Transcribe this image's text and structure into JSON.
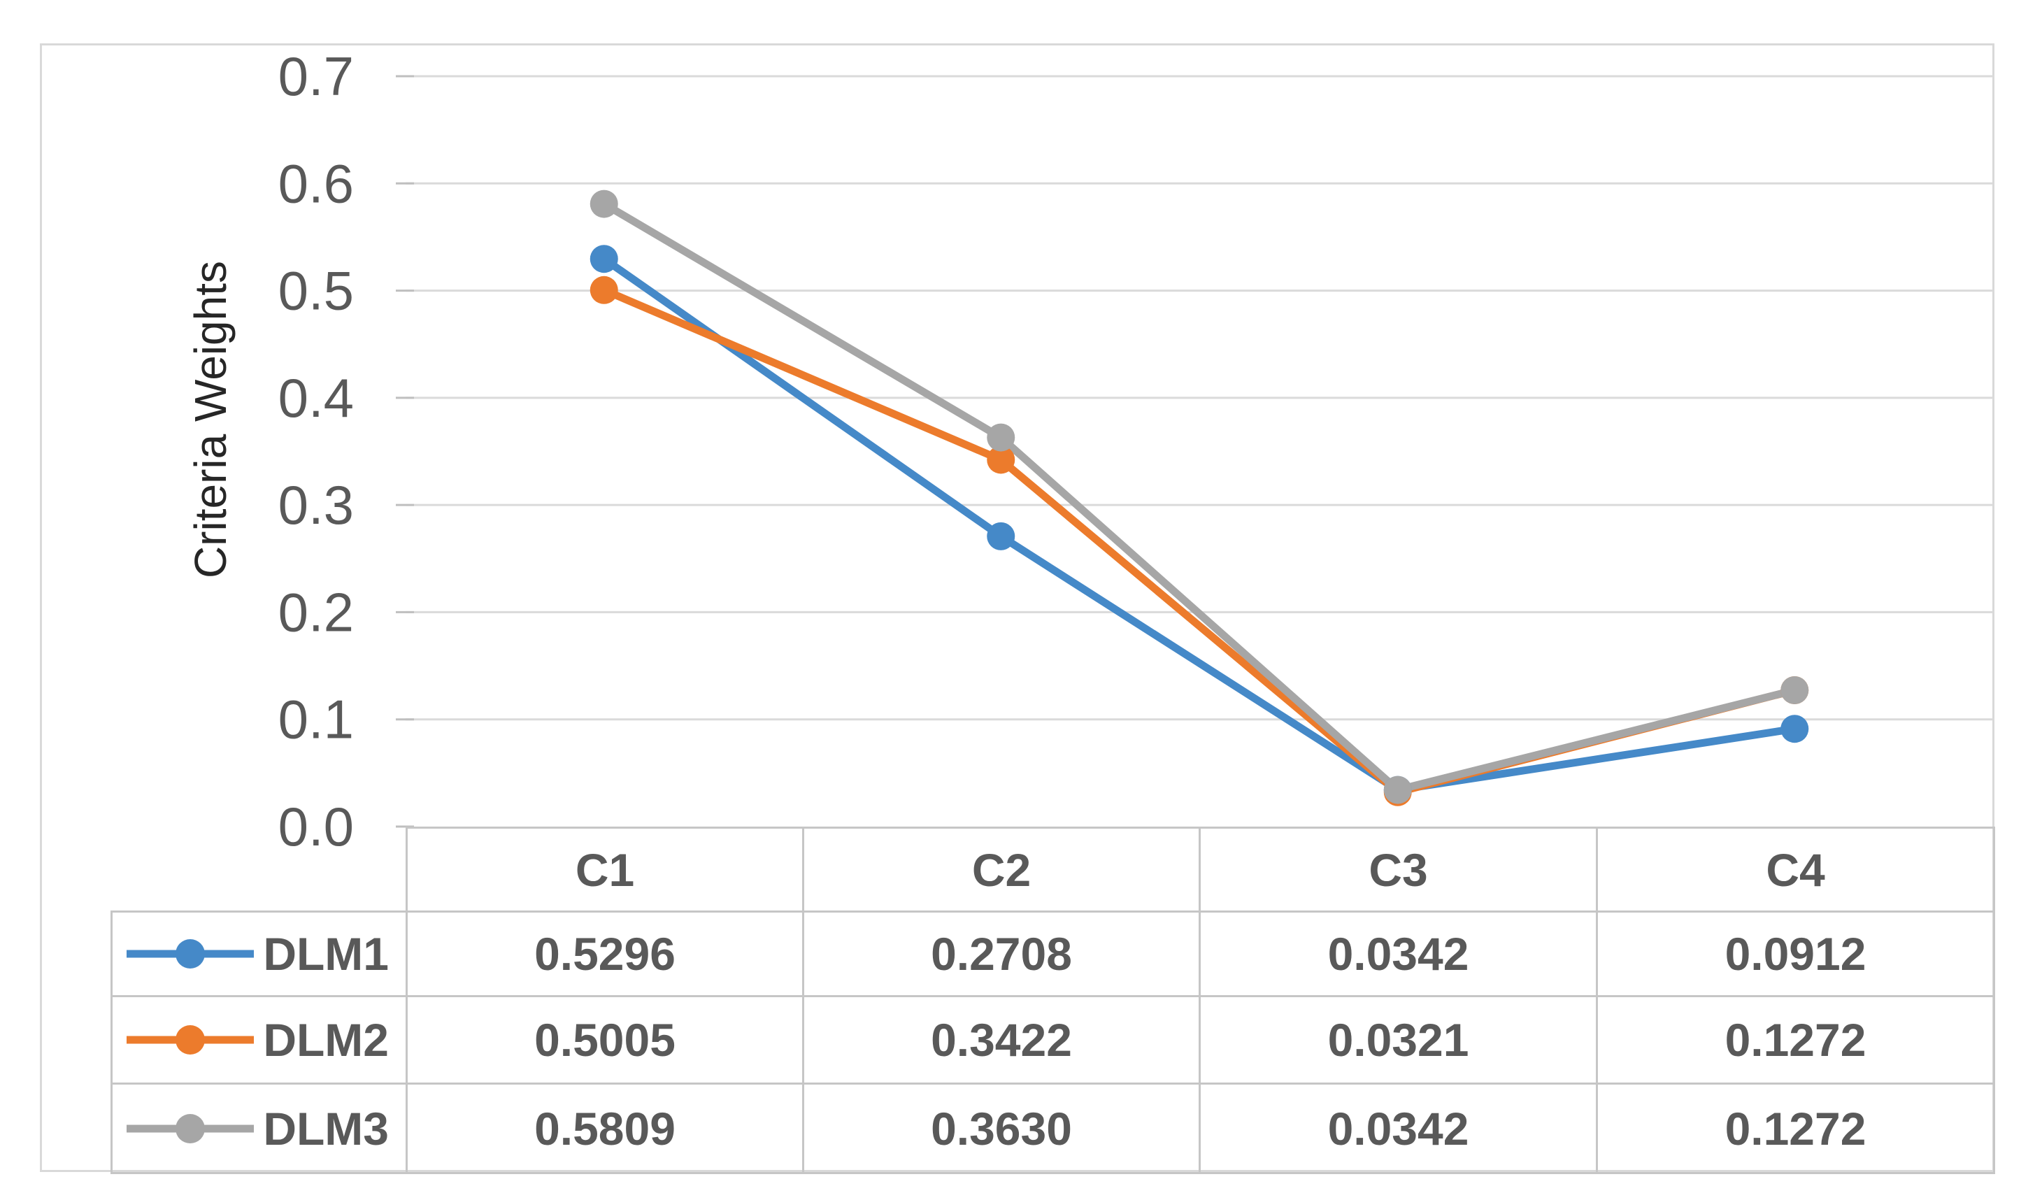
{
  "figure": {
    "kind": "spreadsheet-line-chart-with-data-table"
  },
  "chart_data": {
    "type": "line",
    "title": "",
    "xlabel": "",
    "ylabel": "Criteria Weights",
    "categories": [
      "C1",
      "C2",
      "C3",
      "C4"
    ],
    "series": [
      {
        "name": "DLM1",
        "color": "#4589C8",
        "values": [
          0.5296,
          0.2708,
          0.0342,
          0.0912
        ],
        "values_display": [
          "0.5296",
          "0.2708",
          "0.0342",
          "0.0912"
        ]
      },
      {
        "name": "DLM2",
        "color": "#EC7B2C",
        "values": [
          0.5005,
          0.3422,
          0.0321,
          0.1272
        ],
        "values_display": [
          "0.5005",
          "0.3422",
          "0.0321",
          "0.1272"
        ]
      },
      {
        "name": "DLM3",
        "color": "#A6A6A6",
        "values": [
          0.5809,
          0.363,
          0.0342,
          0.1272
        ],
        "values_display": [
          "0.5809",
          "0.3630",
          "0.0342",
          "0.1272"
        ]
      }
    ],
    "y_axis": {
      "min": 0.0,
      "max": 0.7,
      "step": 0.1,
      "tick_labels": [
        "0.7",
        "0.6",
        "0.5",
        "0.4",
        "0.3",
        "0.2",
        "0.1",
        "0.0"
      ]
    },
    "grid": true,
    "grid_color": "#DADADA",
    "tick_color": "#BFBFBF",
    "marker": "circle",
    "legend_position": "data-table-left",
    "data_table_shown": true
  }
}
